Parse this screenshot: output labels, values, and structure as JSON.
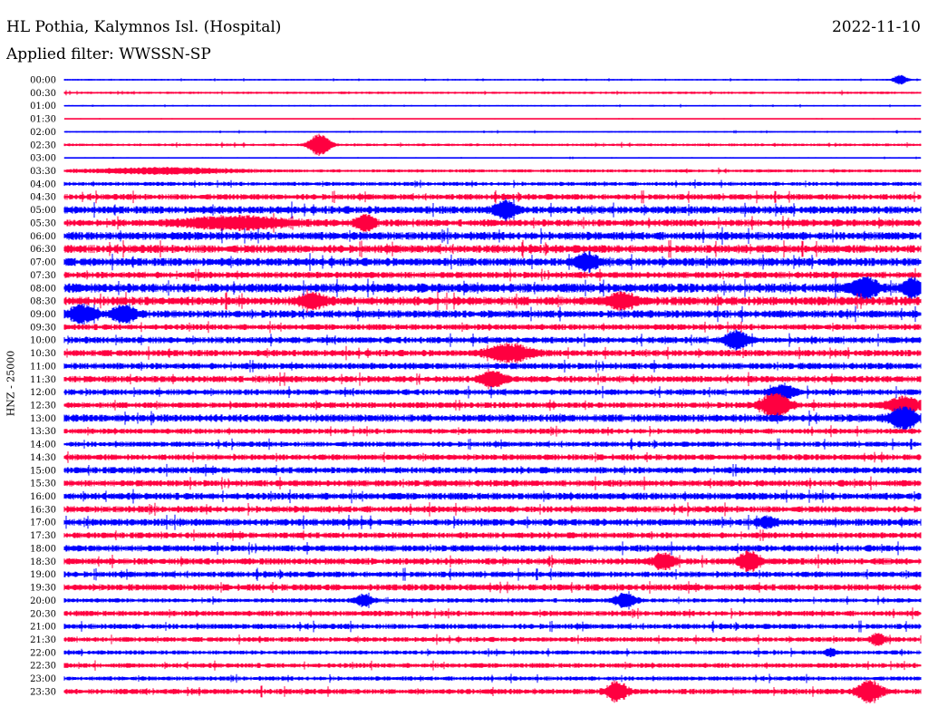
{
  "header": {
    "station": "HL Pothia, Kalymnos Isl. (Hospital)",
    "date": "2022-11-10",
    "filter": "Applied filter: WWSSN-SP"
  },
  "chart_data": {
    "type": "line",
    "ylabel": "HNZ - 25000",
    "rows": [
      "00:00",
      "00:30",
      "01:00",
      "01:30",
      "02:00",
      "02:30",
      "03:00",
      "03:30",
      "04:00",
      "04:30",
      "05:00",
      "05:30",
      "06:00",
      "06:30",
      "07:00",
      "07:30",
      "08:00",
      "08:30",
      "09:00",
      "09:30",
      "10:00",
      "10:30",
      "11:00",
      "11:30",
      "12:00",
      "12:30",
      "13:00",
      "13:30",
      "14:00",
      "14:30",
      "15:00",
      "15:30",
      "16:00",
      "16:30",
      "17:00",
      "17:30",
      "18:00",
      "18:30",
      "19:00",
      "19:30",
      "20:00",
      "20:30",
      "21:00",
      "21:30",
      "22:00",
      "22:30",
      "23:00",
      "23:30"
    ],
    "colors": [
      "#0000ff",
      "#ff0040"
    ],
    "noise": [
      0.6,
      0.9,
      0.6,
      0.3,
      0.6,
      1.0,
      0.5,
      1.2,
      1.5,
      2.2,
      2.8,
      2.6,
      3.0,
      3.0,
      3.0,
      2.4,
      3.4,
      3.2,
      2.8,
      2.2,
      2.4,
      2.4,
      2.4,
      2.4,
      2.2,
      2.2,
      2.8,
      2.0,
      2.0,
      2.2,
      2.4,
      2.4,
      2.6,
      2.4,
      2.6,
      2.2,
      2.4,
      2.4,
      2.2,
      2.4,
      1.6,
      2.0,
      2.0,
      1.8,
      1.6,
      1.8,
      1.6,
      2.0
    ],
    "events": [
      {
        "row": 0,
        "x": 0.976,
        "amp": 5,
        "w": 0.008
      },
      {
        "row": 5,
        "x": 0.298,
        "amp": 12,
        "w": 0.012
      },
      {
        "row": 7,
        "x": 0.115,
        "amp": 3,
        "w": 0.08
      },
      {
        "row": 10,
        "x": 0.515,
        "amp": 9,
        "w": 0.012
      },
      {
        "row": 11,
        "x": 0.2,
        "amp": 6,
        "w": 0.06
      },
      {
        "row": 11,
        "x": 0.352,
        "amp": 8,
        "w": 0.01
      },
      {
        "row": 14,
        "x": 0.61,
        "amp": 9,
        "w": 0.012
      },
      {
        "row": 16,
        "x": 0.935,
        "amp": 10,
        "w": 0.016
      },
      {
        "row": 16,
        "x": 0.99,
        "amp": 8,
        "w": 0.012
      },
      {
        "row": 17,
        "x": 0.65,
        "amp": 8,
        "w": 0.015
      },
      {
        "row": 17,
        "x": 0.29,
        "amp": 7,
        "w": 0.015
      },
      {
        "row": 18,
        "x": 0.02,
        "amp": 9,
        "w": 0.014
      },
      {
        "row": 18,
        "x": 0.07,
        "amp": 8,
        "w": 0.014
      },
      {
        "row": 20,
        "x": 0.785,
        "amp": 10,
        "w": 0.012
      },
      {
        "row": 21,
        "x": 0.52,
        "amp": 9,
        "w": 0.025
      },
      {
        "row": 23,
        "x": 0.5,
        "amp": 9,
        "w": 0.014
      },
      {
        "row": 24,
        "x": 0.84,
        "amp": 8,
        "w": 0.014
      },
      {
        "row": 25,
        "x": 0.83,
        "amp": 14,
        "w": 0.016
      },
      {
        "row": 25,
        "x": 0.98,
        "amp": 8,
        "w": 0.02
      },
      {
        "row": 26,
        "x": 0.98,
        "amp": 13,
        "w": 0.014
      },
      {
        "row": 34,
        "x": 0.82,
        "amp": 5,
        "w": 0.01
      },
      {
        "row": 37,
        "x": 0.7,
        "amp": 9,
        "w": 0.012
      },
      {
        "row": 37,
        "x": 0.8,
        "amp": 11,
        "w": 0.012
      },
      {
        "row": 40,
        "x": 0.35,
        "amp": 6,
        "w": 0.01
      },
      {
        "row": 40,
        "x": 0.655,
        "amp": 8,
        "w": 0.012
      },
      {
        "row": 43,
        "x": 0.95,
        "amp": 6,
        "w": 0.008
      },
      {
        "row": 44,
        "x": 0.895,
        "amp": 4,
        "w": 0.006
      },
      {
        "row": 47,
        "x": 0.645,
        "amp": 10,
        "w": 0.012
      },
      {
        "row": 47,
        "x": 0.94,
        "amp": 12,
        "w": 0.014
      }
    ]
  }
}
